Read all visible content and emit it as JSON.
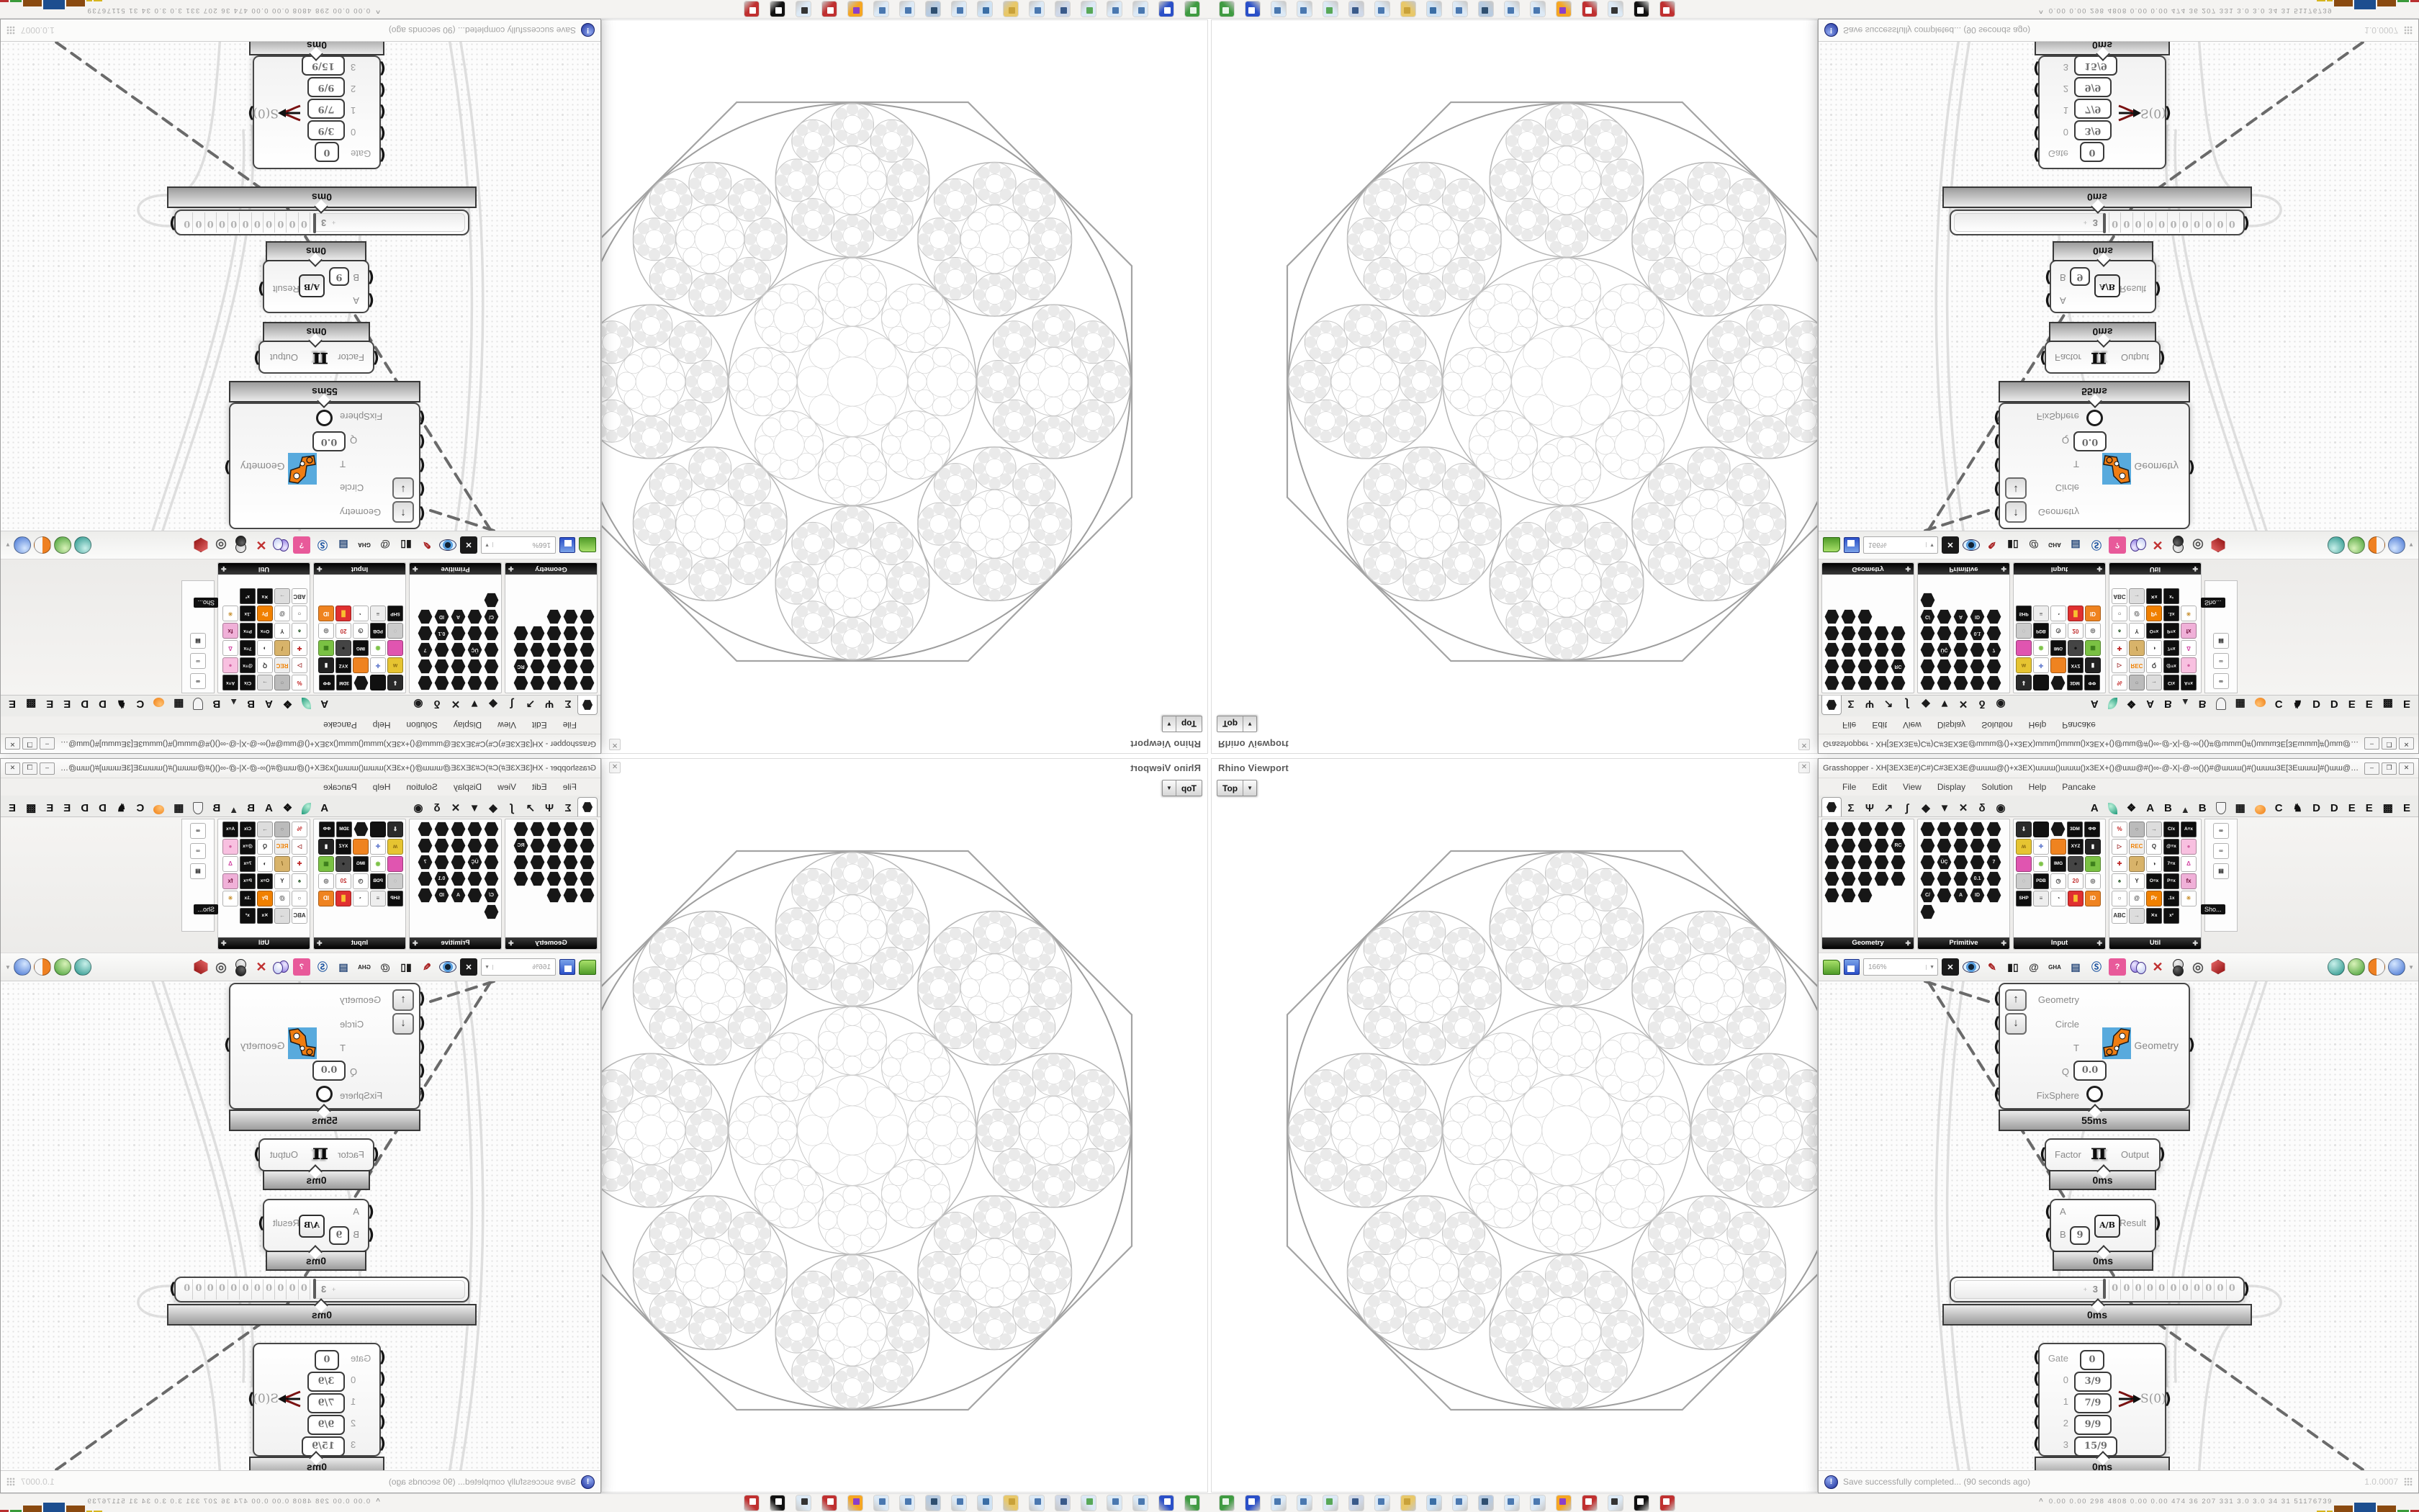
{
  "viewport": {
    "title": "Rhino Viewport",
    "close_label": "✕",
    "tab_label": "Top",
    "tab_arrow": "▼",
    "fractal_colors": {
      "octagon": "#a4a4a4",
      "ring0": "#9e9e9e",
      "ring1": "#b6b6b6",
      "ring2": "#c7c7c7",
      "ring3": "#d3d3d3"
    }
  },
  "gh": {
    "title": "Grasshopper - XH[3EX3E#)C#)C#3EX3E@ɯɯɯ@()+x3EX)ɯɯɯ()ɯɯɯ()x3EX+()@ɯɯ@#()∞-@-X|-@-∞()()#@ɯɯɯ()#()ɯɯɯ3E[3Eɯɯɯ]#()ɯɯ@#()()∞-@-X|-@-∞()()#@ɯɯ@()+x3EXɯɯɯ()...",
    "window_buttons": [
      "–",
      "❒",
      "✕"
    ],
    "menus": [
      "File",
      "Edit",
      "View",
      "Display",
      "Solution",
      "Help",
      "Pancake"
    ],
    "tab_icons": [
      {
        "name": "tab-params",
        "glyph": "hex",
        "selected": true
      },
      {
        "name": "tab-maths",
        "glyph": "Σ"
      },
      {
        "name": "tab-sets",
        "glyph": "Ψ"
      },
      {
        "name": "tab-vector",
        "glyph": "↗"
      },
      {
        "name": "tab-curve",
        "glyph": "∫"
      },
      {
        "name": "tab-surface",
        "glyph": "◆"
      },
      {
        "name": "tab-mesh",
        "glyph": "▼"
      },
      {
        "name": "tab-intersect",
        "glyph": "✕"
      },
      {
        "name": "tab-transform",
        "glyph": "δ"
      },
      {
        "name": "tab-display",
        "glyph": "◉"
      }
    ],
    "plugin_tabs": [
      {
        "t": "A"
      },
      {
        "i": "leaf"
      },
      {
        "t": "❖"
      },
      {
        "t": "A"
      },
      {
        "t": "B"
      },
      {
        "i": "mountain"
      },
      {
        "t": "B"
      },
      {
        "i": "shield"
      },
      {
        "t": "▦"
      },
      {
        "i": "dot"
      },
      {
        "t": "C"
      },
      {
        "t": "♞"
      },
      {
        "t": "D"
      },
      {
        "t": "D"
      },
      {
        "t": "E"
      },
      {
        "t": "E"
      },
      {
        "t": "▩"
      },
      {
        "t": "E"
      }
    ],
    "palette": {
      "panels": [
        {
          "label": "Geometry",
          "icons": [
            "h",
            "h",
            "h",
            "h",
            "h",
            "h",
            "h",
            "h",
            "h",
            "h:RC",
            "h",
            "h",
            "h",
            "h",
            "h",
            "h",
            "h",
            "h",
            "h",
            "h",
            "h",
            "h",
            "h"
          ]
        },
        {
          "label": "Primitive",
          "icons": [
            "h",
            "h",
            "h",
            "h",
            "h",
            "h",
            "h",
            "h",
            "h",
            "h",
            "h",
            "h:ÜÇ",
            "h",
            "h",
            "h:7",
            "h",
            "h",
            "h",
            "h:0.1",
            "h",
            "h:C/",
            "h",
            "h:A",
            "h:ID",
            "h",
            "h"
          ]
        },
        {
          "label": "Input",
          "icons": [
            "s:#2a2a2a:⇓:#fff",
            "s:#111::",
            "h",
            "c:3DM",
            "c:ΦΦ",
            "s:#e6c431:ʍ:#8a6a10",
            "s:#ffffff:✛:#3858c0",
            "s:#ef8320::",
            "c:XYZ",
            "s:#222:▮:#fff",
            "s:#e055b0::",
            "s:#ffffff:◉:#7ac143",
            "c:IMG",
            "s:#444:●:#111",
            "s:#7ac143:▦:#3a7a1a",
            "s:#cccccc:◌:#888",
            "c:PDB",
            "s:#ffffff:◷:#333",
            "s:#ffffff:20:#c03030",
            "s:#ffffff:◎:#555",
            "c:SHP",
            "s:#eeeeee:≡:#555",
            "s:#ffffff:◔:#333",
            "s:#e03030:█:#f8c030",
            "s:#ef8320:ID:#fff"
          ]
        },
        {
          "label": "Util",
          "icons": [
            "s:#ffffff:%:#c02020",
            "s:#bbbbbb:○:#777",
            "s:#dddddd:→:#666",
            "c:C/x",
            "c:A≡x",
            "s:#ffffff:▷:#a03030",
            "s:#eeeeee:REC:#f08000",
            "s:#ffffff:Q:#333",
            "c:@≡x",
            "s:#f8c0e0:●:#d060a0",
            "s:#ffffff:✚:#c03030",
            "s:#d8b36a:/:#7a5a1a",
            "s:#ffffff:◑:#333",
            "c:7≡x",
            "s:#ffffff:Δ:#d040a0",
            "s:#ffffff:♠:#2a5a2a",
            "s:#ffffff:Y:#333",
            "c:O≡x",
            "c:P≡x",
            "s:#f0b0d8:fx:#70103a",
            "s:#ffffff:○:#444",
            "s:#ffffff:@:#444",
            "s:#f08000:Pr:#fff",
            "c:.1x",
            "s:#ffffff:✳:#c89030",
            "s:#ffffff:ABC:#333",
            "s:#dddddd:→:#888",
            "c:✕x",
            "c:x²"
          ]
        }
      ],
      "strip_icons": [
        "s:#ffffff:∞:#222",
        "s:#ffffff:∞:#555",
        "s:#ffffff:▤:#222"
      ],
      "strip_tooltip": "Sho..."
    },
    "toolbar": {
      "zoom_value": "166%",
      "buttons": [
        {
          "name": "open-button",
          "k": "folder"
        },
        {
          "name": "save-button",
          "k": "save"
        },
        {
          "name": "zoom-level-select",
          "k": "zoombox"
        },
        {
          "name": "zoom-extents-button",
          "k": "sq",
          "g": "✕",
          "c": "#fff",
          "bg": "#1a1a1a"
        },
        {
          "name": "preview-eye-button",
          "k": "eye"
        },
        {
          "name": "paintbrush-button",
          "k": "g",
          "g": "✎",
          "c": "#a82020"
        },
        {
          "name": "gate-display-button",
          "k": "g",
          "g": "▮▯",
          "c": "#1a1a1a"
        },
        {
          "name": "email-button",
          "k": "g",
          "g": "@",
          "c": "#333"
        },
        {
          "name": "gha-button",
          "k": "g",
          "g": "GHA",
          "c": "#222",
          "fs": "8px"
        },
        {
          "name": "sketch-export-button",
          "k": "g",
          "g": "▤",
          "c": "#2a4a7a"
        },
        {
          "name": "find-button",
          "k": "g",
          "g": "Ⓢ",
          "c": "#1a52a0"
        },
        {
          "name": "gift-button",
          "k": "sq",
          "g": "?",
          "c": "#fff",
          "bg": "#e85a9a"
        },
        {
          "name": "balloons-button",
          "k": "balloons"
        },
        {
          "name": "cluster-button",
          "k": "g",
          "g": "✕",
          "c": "#c03030",
          "fs": "18px"
        },
        {
          "name": "preview-quality-button",
          "k": "spheres"
        },
        {
          "name": "preview-rings-button",
          "k": "g",
          "g": "◎",
          "c": "#555",
          "fs": "18px"
        },
        {
          "name": "shaded-preview-button",
          "k": "gem"
        },
        {
          "name": "sep",
          "k": "sep"
        },
        {
          "name": "ball-teal-button",
          "k": "ball",
          "bg": "radial-gradient(circle at 35% 30%,#c8f0ea,#1f8f85)"
        },
        {
          "name": "ball-green-button",
          "k": "ball",
          "bg": "radial-gradient(circle at 35% 30%,#d8f2b8,#3f9b2f)"
        },
        {
          "name": "ball-orange-button",
          "k": "ball",
          "bg": "linear-gradient(90deg,#ef8122 50%,#f6f6f6 50%)"
        },
        {
          "name": "ball-blue-button",
          "k": "ball",
          "bg": "radial-gradient(circle at 35% 30%,#d4e6ff,#3f6fd0)",
          "arrow": true
        }
      ]
    },
    "canvas": {
      "pipe": {
        "inputs": [
          {
            "label": "Geometry"
          },
          {
            "label": "Circle"
          },
          {
            "label": "T"
          },
          {
            "label": "Q",
            "value": "0.0"
          },
          {
            "label": "FixSphere"
          }
        ],
        "up_glyph": "↑",
        "down_glyph": "↓",
        "output": "Geometry",
        "time": "55ms"
      },
      "pi": {
        "input": "Factor",
        "glyph": "π",
        "output": "Output",
        "time": "0ms"
      },
      "division": {
        "a": "A",
        "b": "B",
        "b_value": "9",
        "icon": "A/B",
        "output": "Result",
        "time": "0ms"
      },
      "slider": {
        "plus": "+",
        "value": "3",
        "cells": [
          "0",
          "0",
          "0",
          "0",
          "0",
          "0",
          "0",
          "0",
          "0",
          "0",
          "0"
        ],
        "time": "0ms"
      },
      "gate": {
        "rows": [
          {
            "label": "Gate",
            "value": "0"
          },
          {
            "label": "0",
            "value": "3/9"
          },
          {
            "label": "1",
            "value": "7/9"
          },
          {
            "label": "2",
            "value": "9/9"
          },
          {
            "label": "3",
            "value": "15/9"
          }
        ],
        "output": "S(0)",
        "time": "0ms"
      }
    },
    "status": {
      "message": "Save successfully completed... (90 seconds ago)",
      "badge": "!",
      "version": "1.0.0007"
    }
  },
  "system_bar": {
    "icons": [
      {
        "b": "#3f9b41",
        "a": "#e8f5e9"
      },
      {
        "b": "#2b50c8",
        "a": "#ffffff"
      },
      {
        "b": "#dce9f5",
        "a": "#4a78b0"
      },
      {
        "b": "#dce9f5",
        "a": "#4a78b0"
      },
      {
        "b": "#dce9f5",
        "a": "#58a858"
      },
      {
        "b": "#cfd8e8",
        "a": "#3a5a8a"
      },
      {
        "b": "#dce9f5",
        "a": "#4a78b0"
      },
      {
        "b": "#e8c86a",
        "a": "#c9a23a"
      },
      {
        "b": "#cfe2f3",
        "a": "#3a6ea5"
      },
      {
        "b": "#dce9f5",
        "a": "#4a78b0"
      },
      {
        "b": "#b8cbe0",
        "a": "#2f4f70"
      },
      {
        "b": "#dce9f5",
        "a": "#4a78b0"
      },
      {
        "b": "#dce9f5",
        "a": "#4a78b0"
      },
      {
        "b": "#f5a623",
        "a": "#8b3fc9"
      },
      {
        "b": "#c03030",
        "a": "#ffffff"
      },
      {
        "b": "#dce9f5",
        "a": "#333333"
      },
      {
        "b": "#111111",
        "a": "#ffffff"
      },
      {
        "b": "#c03030",
        "a": "#ffffff"
      }
    ],
    "caret": "^",
    "stats": "0.00 0.00  298  4808 0.00 0.00  474   36   207   331   3.0   3.0   34    31  51176739",
    "histogram": [
      {
        "c": "#d6b41e",
        "h": 2,
        "w": 12
      },
      {
        "c": "#d6b41e",
        "h": 2,
        "w": 8
      },
      {
        "c": "#8a4a10",
        "h": 9,
        "w": 26
      },
      {
        "c": "#1d4e8f",
        "h": 13,
        "w": 30
      },
      {
        "c": "#8a4a10",
        "h": 9,
        "w": 26
      },
      {
        "c": "#3a9a3a",
        "h": 3,
        "w": 16
      },
      {
        "c": "#b83030",
        "h": 3,
        "w": 18
      }
    ]
  }
}
